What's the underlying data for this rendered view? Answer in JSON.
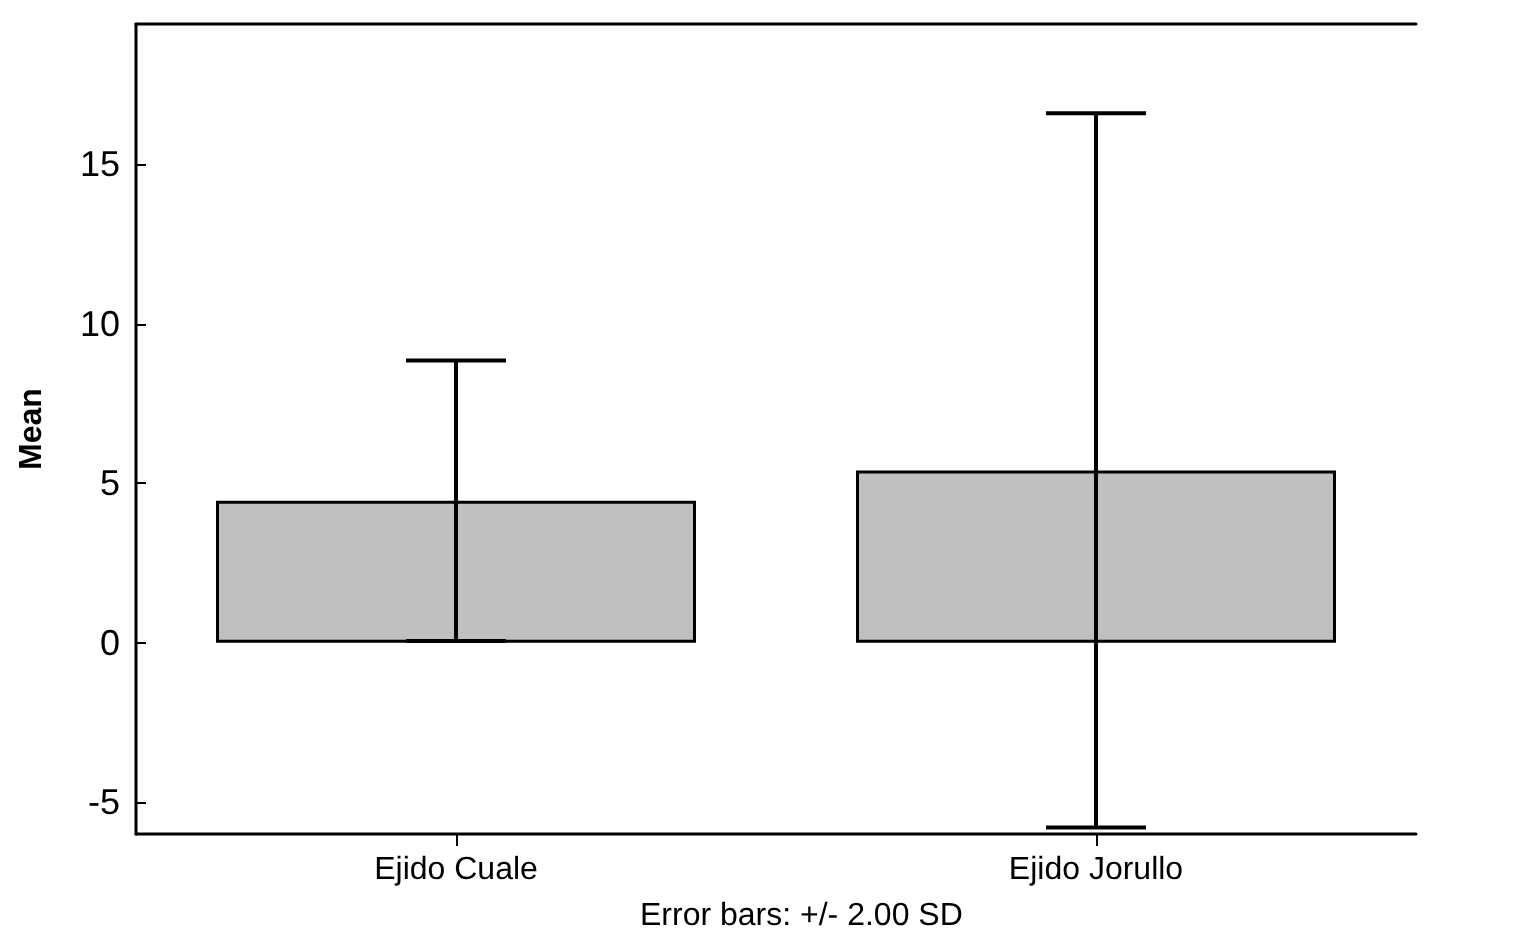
{
  "chart_data": {
    "type": "bar",
    "ylabel": "Mean",
    "categories": [
      "Ejido Cuale",
      "Ejido Jorullo"
    ],
    "series": [
      {
        "color": "#c0c0c0",
        "values": [
          4.45,
          5.4
        ],
        "errors": [
          4.4,
          11.2
        ]
      }
    ],
    "ylim": [
      -6,
      19.4
    ],
    "yticks": [
      -5,
      0,
      5,
      10,
      15
    ],
    "grid": false,
    "annotations": [
      "Error bars: +/- 2.00 SD"
    ]
  }
}
